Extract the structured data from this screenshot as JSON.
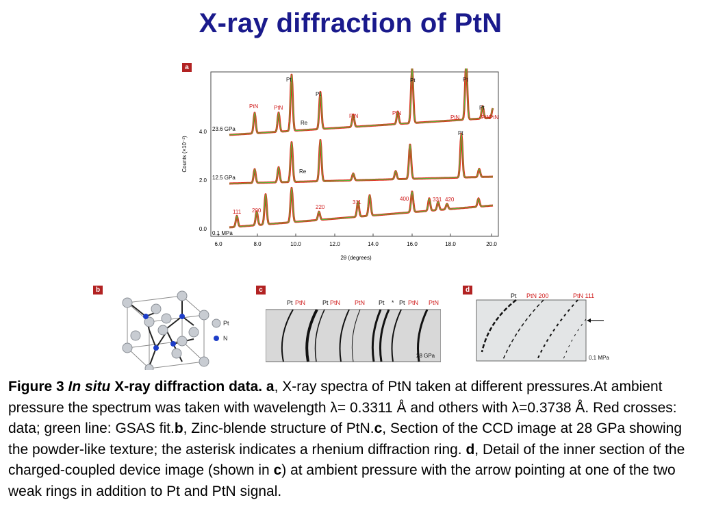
{
  "title": "X-ray diffraction of PtN",
  "panels": {
    "a": {
      "label": "a",
      "ylabel": "Counts (×10⁻³)",
      "xlabel": "2θ (degrees)",
      "xticks": [
        "6.0",
        "8.0",
        "10.0",
        "12.0",
        "14.0",
        "16.0",
        "18.0",
        "20.0"
      ],
      "yticks": [
        "0.0",
        "2.0",
        "4.0"
      ],
      "pressures": [
        "23.6 GPa",
        "12.5 GPa",
        "0.1 MPa"
      ],
      "top_labels": {
        "pt": "Pt",
        "ptn": "PtN",
        "re": "Re"
      },
      "mid_labels": {
        "pt": "Pt",
        "re": "Re"
      },
      "hkl": [
        "111",
        "200",
        "220",
        "311",
        "400",
        "331",
        "420"
      ]
    },
    "b": {
      "label": "b",
      "legend_pt": "Pt",
      "legend_n": "N"
    },
    "c": {
      "label": "c",
      "header": [
        "Pt",
        "PtN",
        "Pt",
        "PtN",
        "PtN",
        "Pt",
        "*",
        "Pt",
        "PtN",
        "PtN"
      ],
      "pressure": "28 GPa"
    },
    "d": {
      "label": "d",
      "header": [
        "Pt",
        "PtN 200",
        "PtN 111"
      ],
      "pressure": "0.1 MPa"
    }
  },
  "caption": {
    "fig": "Figure 3",
    "insitu": "In situ",
    "heading": " X-ray diffraction data. ",
    "a": "a",
    "t1": ", X-ray spectra of PtN taken at different pressures.At ambient pressure the spectrum was taken with wavelength λ= 0.3311 Å and others with λ=0.3738 Å. Red crosses: data; green line: GSAS fit.",
    "b": "b",
    "t2": ", Zinc-blende structure of PtN.",
    "c": "c",
    "t3": ", Section of the CCD image at 28 GPa showing the powder-like texture; the asterisk indicates a rhenium diffraction ring. ",
    "d": "d",
    "t4": ", Detail of the inner section of the charged-coupled device image (shown in ",
    "c2": "c",
    "t5": ") at ambient pressure with the arrow pointing at one of the two weak rings in addition to Pt and PtN signal."
  }
}
